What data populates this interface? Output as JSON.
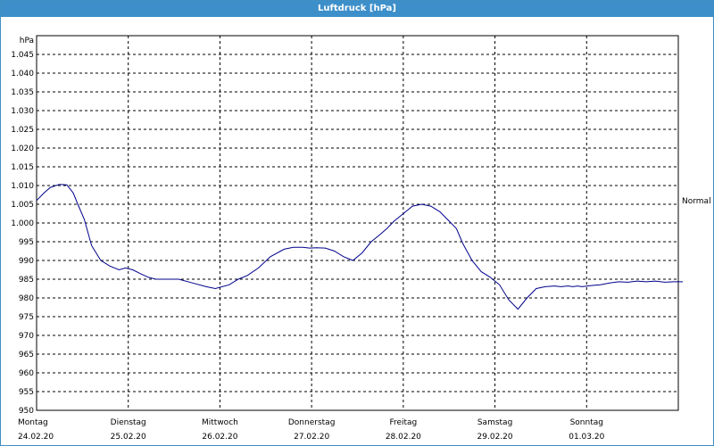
{
  "window": {
    "title": "Luftdruck [hPa]"
  },
  "chart_data": {
    "type": "line",
    "title": "Luftdruck [hPa]",
    "ylabel": "hPa",
    "xlabel": "",
    "ylim": [
      950,
      1050
    ],
    "y_ticks": [
      "950",
      "955",
      "960",
      "965",
      "970",
      "975",
      "980",
      "985",
      "990",
      "995",
      "1.000",
      "1.005",
      "1.010",
      "1.015",
      "1.020",
      "1.025",
      "1.030",
      "1.035",
      "1.040",
      "1.045"
    ],
    "x_range_days": [
      0,
      7
    ],
    "x_ticks": [
      {
        "day": "Montag",
        "date": "24.02.20"
      },
      {
        "day": "Dienstag",
        "date": "25.02.20"
      },
      {
        "day": "Mittwoch",
        "date": "26.02.20"
      },
      {
        "day": "Donnerstag",
        "date": "27.02.20"
      },
      {
        "day": "Freitag",
        "date": "28.02.20"
      },
      {
        "day": "Samstag",
        "date": "29.02.20"
      },
      {
        "day": "Sonntag",
        "date": "01.03.20"
      }
    ],
    "reference_line": {
      "label": "Normal",
      "value": 1006
    },
    "grid": true,
    "series": [
      {
        "color": "#00008b",
        "x": [
          0.0,
          0.08,
          0.15,
          0.25,
          0.33,
          0.4,
          0.45,
          0.52,
          0.6,
          0.7,
          0.8,
          0.9,
          0.97,
          1.05,
          1.13,
          1.22,
          1.3,
          1.35,
          1.42,
          1.55,
          1.7,
          1.85,
          1.95,
          2.1,
          2.2,
          2.3,
          2.42,
          2.55,
          2.7,
          2.8,
          2.9,
          2.98,
          3.05,
          3.15,
          3.25,
          3.35,
          3.45,
          3.55,
          3.65,
          3.75,
          3.82,
          3.9,
          4.0,
          4.1,
          4.2,
          4.3,
          4.4,
          4.5,
          4.58,
          4.65,
          4.75,
          4.85,
          4.95,
          5.05,
          5.15,
          5.25,
          5.35,
          5.45,
          5.55,
          5.65,
          5.72,
          5.8,
          5.85,
          5.9,
          5.95,
          6.05,
          6.15,
          6.25,
          6.35,
          6.45,
          6.55,
          6.65,
          6.75,
          6.85,
          6.95,
          7.05
        ],
        "y": [
          1006.0,
          1008.0,
          1009.5,
          1010.3,
          1010.2,
          1008.0,
          1005.0,
          1001.0,
          994.0,
          990.0,
          988.5,
          987.5,
          988.0,
          987.5,
          986.5,
          985.5,
          985.0,
          985.0,
          985.0,
          985.0,
          984.0,
          983.0,
          982.5,
          983.5,
          985.0,
          986.0,
          988.0,
          991.0,
          993.0,
          993.5,
          993.5,
          993.3,
          993.4,
          993.3,
          992.5,
          991.0,
          990.0,
          992.0,
          995.0,
          997.0,
          998.5,
          1000.5,
          1002.5,
          1004.5,
          1005.0,
          1004.5,
          1003.0,
          1000.5,
          998.5,
          994.5,
          990.0,
          987.0,
          985.5,
          983.5,
          979.5,
          977.0,
          980.0,
          982.5,
          983.0,
          983.2,
          983.0,
          983.2,
          983.0,
          983.2,
          983.0,
          983.3,
          983.5,
          984.0,
          984.3,
          984.2,
          984.5,
          984.3,
          984.5,
          984.2,
          984.3,
          984.3
        ]
      }
    ]
  }
}
